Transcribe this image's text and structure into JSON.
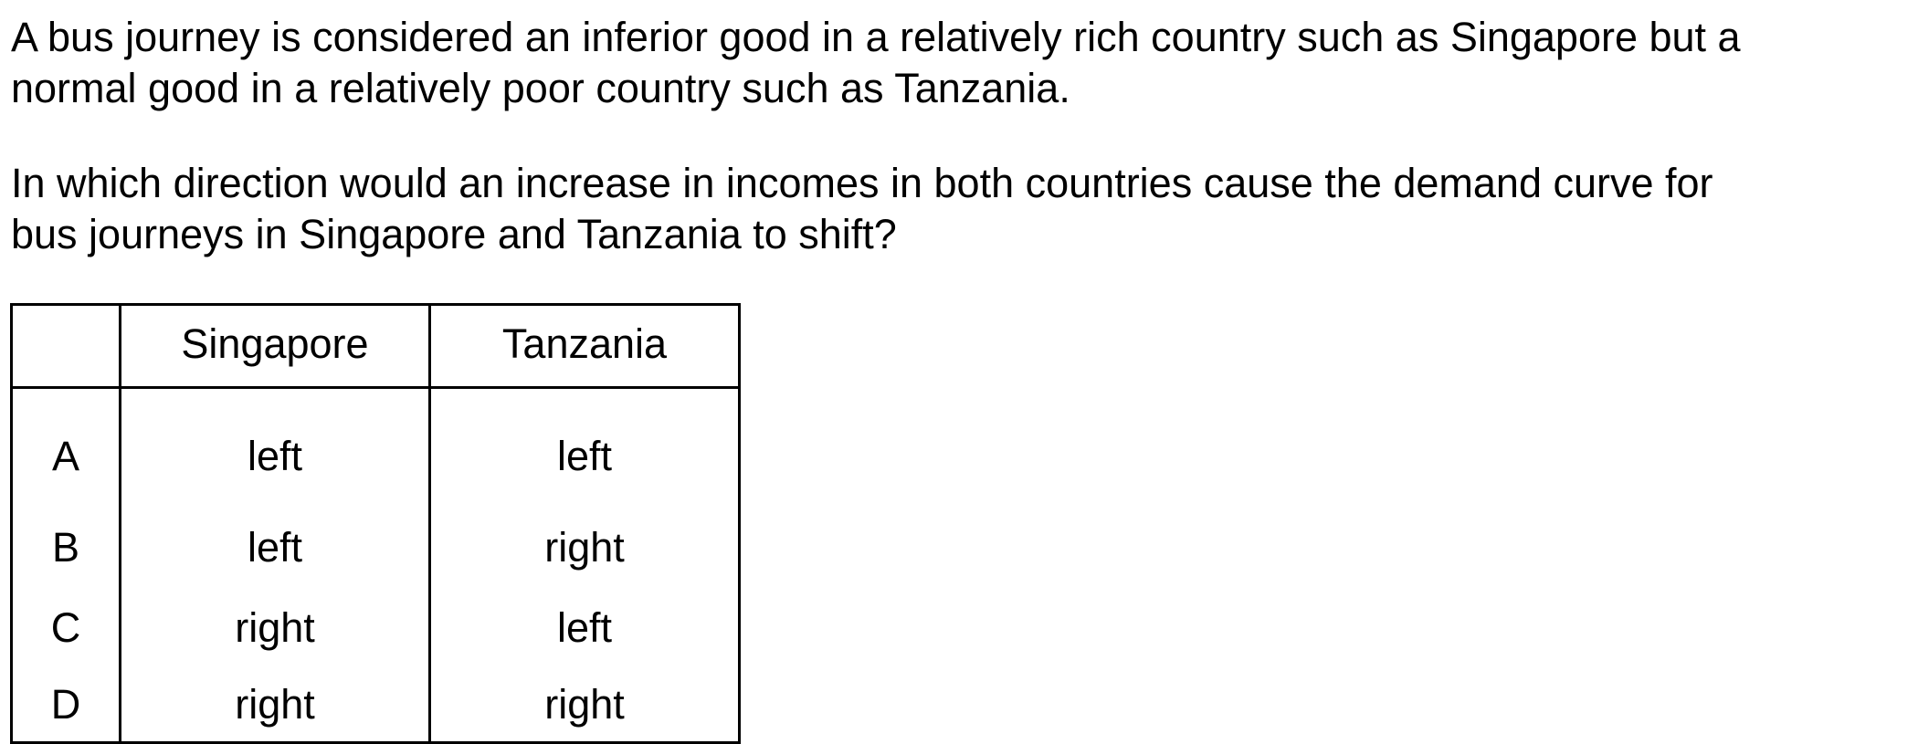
{
  "stem": {
    "lines": [
      "A bus journey is considered an inferior good in a relatively rich country such as Singapore but a",
      "normal good in a relatively poor country such as Tanzania."
    ]
  },
  "question": {
    "lines": [
      "In which direction would an increase in incomes in both countries cause the demand curve for",
      "bus journeys in Singapore and Tanzania to shift?"
    ]
  },
  "table": {
    "headers": [
      "",
      "Singapore",
      "Tanzania"
    ],
    "rows": [
      {
        "letter": "A",
        "singapore": "left",
        "tanzania": "left"
      },
      {
        "letter": "B",
        "singapore": "left",
        "tanzania": "right"
      },
      {
        "letter": "C",
        "singapore": "right",
        "tanzania": "left"
      },
      {
        "letter": "D",
        "singapore": "right",
        "tanzania": "right"
      }
    ]
  }
}
